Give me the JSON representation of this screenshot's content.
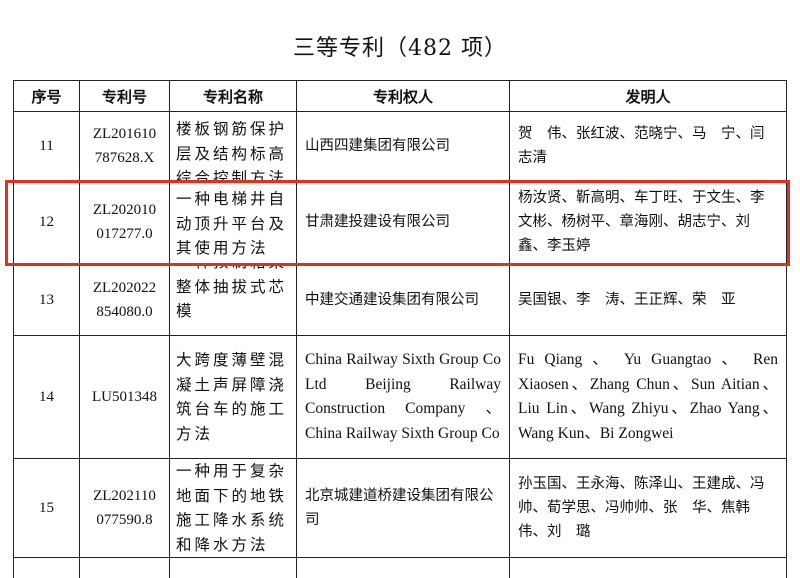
{
  "title": "三等专利（482 项）",
  "headers": [
    "序号",
    "专利号",
    "专利名称",
    "专利权人",
    "发明人"
  ],
  "rows": [
    {
      "no": "11",
      "patent_no": "ZL201610787628.X",
      "patent_no_lines": [
        "ZL201610",
        "787628.X"
      ],
      "name": "楼板钢筋保护层及结构标高综合控制方法",
      "holder": "山西四建集团有限公司",
      "inventors": "贺　伟、张红波、范晓宁、马　宁、闫志清"
    },
    {
      "no": "12",
      "patent_no": "ZL202010017277.0",
      "patent_no_lines": [
        "ZL202010",
        "017277.0"
      ],
      "name": "一种电梯井自动顶升平台及其使用方法",
      "holder": "甘肃建投建设有限公司",
      "inventors": "杨汝贤、靳高明、车丁旺、于文生、李文彬、杨树平、章海刚、胡志宁、刘　鑫、李玉婷"
    },
    {
      "no": "13",
      "patent_no": "ZL202022854080.0",
      "patent_no_lines": [
        "ZL202022",
        "854080.0"
      ],
      "name": "一种预制箱梁整体抽拔式芯模",
      "holder": "中建交通建设集团有限公司",
      "inventors": "吴国银、李　涛、王正辉、荣　亚"
    },
    {
      "no": "14",
      "patent_no": "LU501348",
      "patent_no_lines": [
        "LU501348"
      ],
      "name": "大跨度薄壁混凝土声屏障浇筑台车的施工方法",
      "holder": "China Railway Sixth Group Co Ltd Beijing Railway Construction Company 、China Railway Sixth Group Co",
      "inventors": "Fu Qiang 、 Yu Guangtao 、 Ren Xiaosen、Zhang Chun、Sun Aitian、Liu Lin、Wang Zhiyu、Zhao Yang、Wang Kun、Bi Zongwei"
    },
    {
      "no": "15",
      "patent_no": "ZL202110077590.8",
      "patent_no_lines": [
        "ZL202110",
        "077590.8"
      ],
      "name": "一种用于复杂地面下的地铁施工降水系统和降水方法",
      "holder": "北京城建道桥建设集团有限公司",
      "inventors": "孙玉国、王永海、陈泽山、王建成、冯　帅、荀学思、冯帅帅、张　华、焦韩伟、刘　璐"
    }
  ],
  "highlight_color": "#e0301e"
}
